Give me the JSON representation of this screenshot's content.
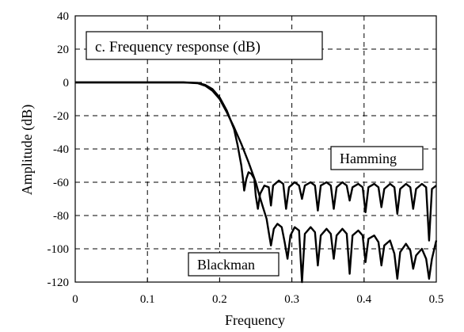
{
  "chart_data": {
    "type": "line",
    "title": "c.  Frequency response (dB)",
    "xlabel": "Frequency",
    "ylabel": "Amplitude (dB)",
    "xlim": [
      0,
      0.5
    ],
    "ylim": [
      -120,
      40
    ],
    "x_ticks": [
      "0",
      "0.1",
      "0.2",
      "0.3",
      "0.4",
      "0.5"
    ],
    "y_ticks": [
      "40",
      "20",
      "0",
      "-20",
      "-40",
      "-60",
      "-80",
      "-100",
      "-120"
    ],
    "grid": true,
    "grid_style": "dashed",
    "annotations": [
      "Hamming",
      "Blackman"
    ],
    "series": [
      {
        "name": "Hamming",
        "color": "#000000",
        "points": [
          [
            0,
            0
          ],
          [
            0.15,
            0
          ],
          [
            0.17,
            -0.3
          ],
          [
            0.18,
            -1.5
          ],
          [
            0.19,
            -4
          ],
          [
            0.2,
            -9
          ],
          [
            0.21,
            -17
          ],
          [
            0.22,
            -28
          ],
          [
            0.225,
            -38
          ],
          [
            0.23,
            -50
          ],
          [
            0.232,
            -57
          ],
          [
            0.234,
            -65
          ],
          [
            0.237,
            -58
          ],
          [
            0.24,
            -54
          ],
          [
            0.244,
            -55
          ],
          [
            0.248,
            -58
          ],
          [
            0.25,
            -68
          ],
          [
            0.253,
            -76
          ],
          [
            0.256,
            -67
          ],
          [
            0.262,
            -62
          ],
          [
            0.268,
            -63
          ],
          [
            0.271,
            -74
          ],
          [
            0.274,
            -62
          ],
          [
            0.282,
            -59
          ],
          [
            0.288,
            -61
          ],
          [
            0.292,
            -76
          ],
          [
            0.296,
            -63
          ],
          [
            0.304,
            -60
          ],
          [
            0.31,
            -62
          ],
          [
            0.314,
            -70
          ],
          [
            0.318,
            -62
          ],
          [
            0.326,
            -60
          ],
          [
            0.332,
            -62
          ],
          [
            0.336,
            -77
          ],
          [
            0.34,
            -62
          ],
          [
            0.348,
            -60
          ],
          [
            0.354,
            -62
          ],
          [
            0.358,
            -76
          ],
          [
            0.362,
            -63
          ],
          [
            0.37,
            -60
          ],
          [
            0.376,
            -62
          ],
          [
            0.38,
            -71
          ],
          [
            0.384,
            -63
          ],
          [
            0.392,
            -61
          ],
          [
            0.398,
            -63
          ],
          [
            0.402,
            -78
          ],
          [
            0.406,
            -63
          ],
          [
            0.414,
            -61
          ],
          [
            0.42,
            -63
          ],
          [
            0.424,
            -75
          ],
          [
            0.428,
            -64
          ],
          [
            0.436,
            -61
          ],
          [
            0.442,
            -63
          ],
          [
            0.446,
            -79
          ],
          [
            0.45,
            -64
          ],
          [
            0.458,
            -61
          ],
          [
            0.464,
            -63
          ],
          [
            0.468,
            -76
          ],
          [
            0.472,
            -64
          ],
          [
            0.48,
            -61
          ],
          [
            0.486,
            -63
          ],
          [
            0.49,
            -95
          ],
          [
            0.494,
            -64
          ],
          [
            0.5,
            -62
          ]
        ]
      },
      {
        "name": "Blackman",
        "color": "#000000",
        "points": [
          [
            0,
            0
          ],
          [
            0.15,
            0
          ],
          [
            0.17,
            -0.5
          ],
          [
            0.18,
            -2
          ],
          [
            0.19,
            -5
          ],
          [
            0.2,
            -10
          ],
          [
            0.21,
            -18
          ],
          [
            0.22,
            -27
          ],
          [
            0.23,
            -37
          ],
          [
            0.24,
            -48
          ],
          [
            0.25,
            -60
          ],
          [
            0.255,
            -68
          ],
          [
            0.26,
            -75
          ],
          [
            0.265,
            -82
          ],
          [
            0.268,
            -90
          ],
          [
            0.271,
            -98
          ],
          [
            0.275,
            -88
          ],
          [
            0.28,
            -85
          ],
          [
            0.286,
            -87
          ],
          [
            0.29,
            -96
          ],
          [
            0.294,
            -106
          ],
          [
            0.298,
            -92
          ],
          [
            0.304,
            -87
          ],
          [
            0.31,
            -89
          ],
          [
            0.314,
            -120
          ],
          [
            0.318,
            -91
          ],
          [
            0.326,
            -87
          ],
          [
            0.332,
            -90
          ],
          [
            0.336,
            -110
          ],
          [
            0.34,
            -92
          ],
          [
            0.348,
            -88
          ],
          [
            0.354,
            -91
          ],
          [
            0.358,
            -106
          ],
          [
            0.362,
            -92
          ],
          [
            0.37,
            -88
          ],
          [
            0.376,
            -91
          ],
          [
            0.38,
            -115
          ],
          [
            0.384,
            -92
          ],
          [
            0.392,
            -89
          ],
          [
            0.398,
            -92
          ],
          [
            0.402,
            -108
          ],
          [
            0.406,
            -94
          ],
          [
            0.414,
            -92
          ],
          [
            0.42,
            -96
          ],
          [
            0.424,
            -110
          ],
          [
            0.428,
            -98
          ],
          [
            0.436,
            -95
          ],
          [
            0.442,
            -103
          ],
          [
            0.446,
            -118
          ],
          [
            0.45,
            -102
          ],
          [
            0.458,
            -97
          ],
          [
            0.464,
            -101
          ],
          [
            0.468,
            -112
          ],
          [
            0.472,
            -104
          ],
          [
            0.48,
            -100
          ],
          [
            0.486,
            -106
          ],
          [
            0.49,
            -118
          ],
          [
            0.494,
            -106
          ],
          [
            0.5,
            -95
          ]
        ]
      }
    ]
  }
}
